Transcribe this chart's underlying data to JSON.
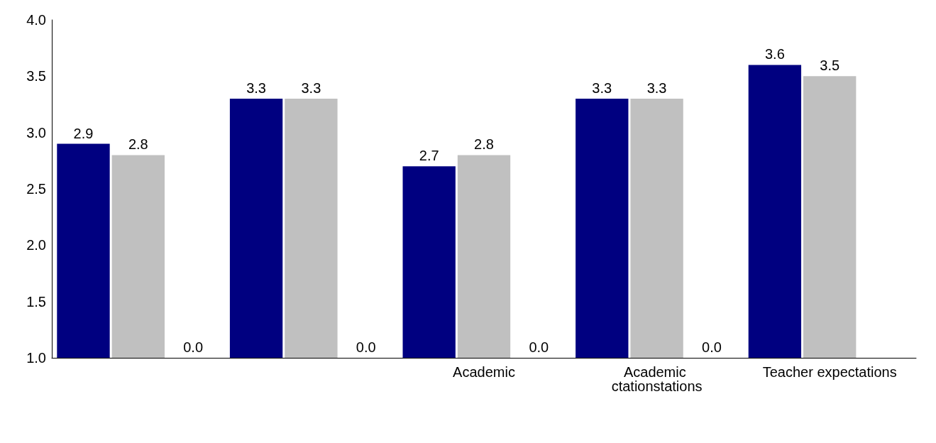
{
  "chart_data": {
    "type": "bar",
    "categories": [
      null,
      null,
      "Academic",
      "Academic ctationstations",
      "Teacher expectations"
    ],
    "series": [
      {
        "color": "#000080",
        "values": [
          2.9,
          3.3,
          2.7,
          3.3,
          3.6
        ]
      },
      {
        "color": "#c0c0c0",
        "values": [
          2.8,
          3.3,
          2.8,
          3.3,
          3.5
        ]
      },
      {
        "color": "#ffffff",
        "values": [
          null,
          null,
          null,
          null,
          null
        ],
        "value_labels": [
          "0.0",
          "0.0",
          "0.0",
          "0.0",
          null
        ]
      }
    ],
    "ylim": [
      1.0,
      4.0
    ],
    "yticks": [
      {
        "value": 1,
        "label": "1.0"
      },
      1.5,
      {
        "value": 2,
        "label": "2.0"
      },
      2.5,
      {
        "value": 3,
        "label": "3.0"
      },
      3.5,
      {
        "value": 4,
        "label": "4.0"
      }
    ],
    "grid": false,
    "data_labels": true
  }
}
